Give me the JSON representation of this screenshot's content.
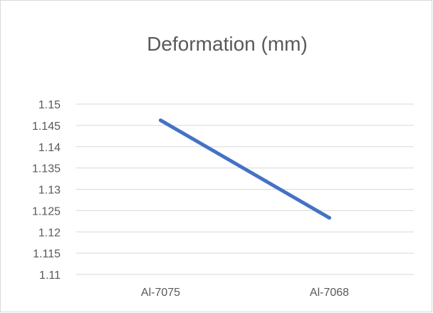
{
  "chart_data": {
    "type": "line",
    "title": "Deformation (mm)",
    "xlabel": "",
    "ylabel": "",
    "categories": [
      "Al-7075",
      "Al-7068"
    ],
    "series": [
      {
        "values": [
          1.1462,
          1.1233
        ],
        "color": "#4472c4"
      }
    ],
    "ylim": [
      1.11,
      1.15
    ],
    "y_ticks": [
      "1.15",
      "1.145",
      "1.14",
      "1.135",
      "1.13",
      "1.125",
      "1.12",
      "1.115",
      "1.11"
    ],
    "grid": true,
    "legend": "none",
    "gridline_color": "#d9d9d9",
    "text_color": "#595959"
  }
}
